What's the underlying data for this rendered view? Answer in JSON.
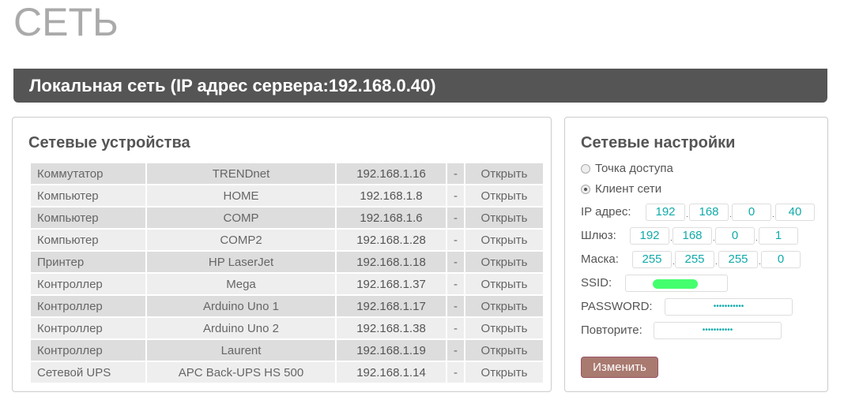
{
  "page_title": "СЕТЬ",
  "header": "Локальная сеть (IP адрес сервера:192.168.0.40)",
  "devices": {
    "title": "Сетевые устройства",
    "rows": [
      [
        "Коммутатор",
        "TRENDnet",
        "192.168.1.16",
        "-",
        "Открыть"
      ],
      [
        "Компьютер",
        "HOME",
        "192.168.1.8",
        "-",
        "Открыть"
      ],
      [
        "Компьютер",
        "COMP",
        "192.168.1.6",
        "-",
        "Открыть"
      ],
      [
        "Компьютер",
        "COMP2",
        "192.168.1.28",
        "-",
        "Открыть"
      ],
      [
        "Принтер",
        "HP LaserJet",
        "192.168.1.18",
        "-",
        "Открыть"
      ],
      [
        "Контроллер",
        "Mega",
        "192.168.1.37",
        "-",
        "Открыть"
      ],
      [
        "Контроллер",
        "Arduino Uno 1",
        "192.168.1.17",
        "-",
        "Открыть"
      ],
      [
        "Контроллер",
        "Arduino Uno 2",
        "192.168.1.38",
        "-",
        "Открыть"
      ],
      [
        "Контроллер",
        "Laurent",
        "192.168.1.19",
        "-",
        "Открыть"
      ],
      [
        "Сетевой UPS",
        "APC Back-UPS HS 500",
        "192.168.1.14",
        "-",
        "Открыть"
      ]
    ]
  },
  "settings": {
    "title": "Сетевые настройки",
    "mode_ap": "Точка доступа",
    "mode_client": "Клиент сети",
    "selected_mode": "client",
    "ip_label": "IP адрес:",
    "ip": [
      "192",
      "168",
      "0",
      "40"
    ],
    "gw_label": "Шлюз:",
    "gw": [
      "192",
      "168",
      "0",
      "1"
    ],
    "mask_label": "Маска:",
    "mask": [
      "255",
      "255",
      "255",
      "0"
    ],
    "ssid_label": "SSID:",
    "ssid_redacted_color": "#44ff6e",
    "password_label": "PASSWORD:",
    "password": "•••••••••••",
    "repeat_label": "Повторите:",
    "repeat": "•••••••••••",
    "submit": "Изменить"
  }
}
